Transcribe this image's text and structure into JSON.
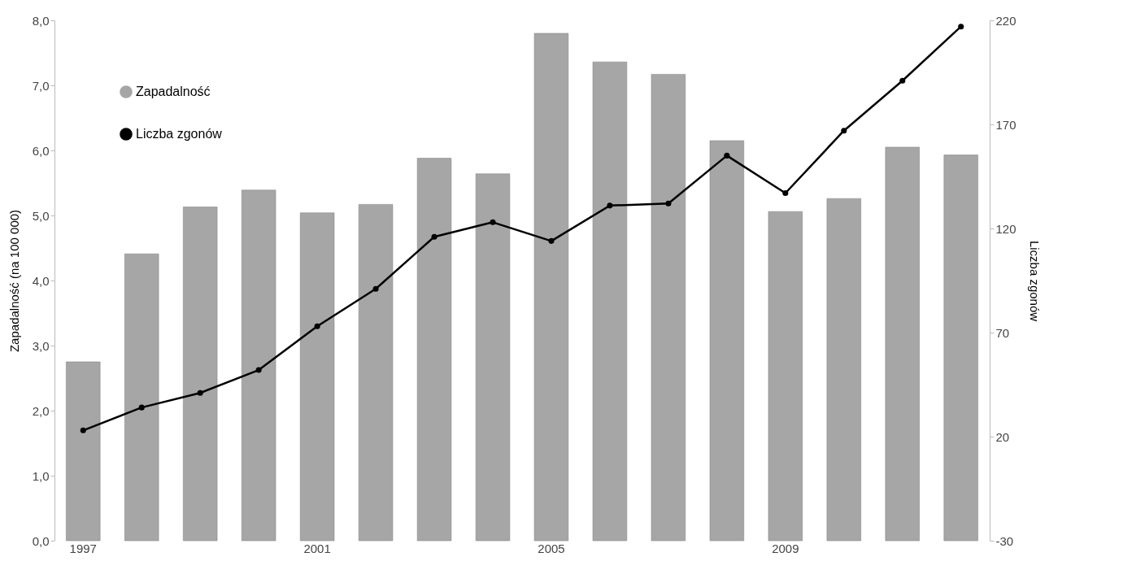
{
  "chart_data": {
    "type": "bar",
    "categories": [
      "1997",
      null,
      null,
      null,
      "2001",
      null,
      null,
      null,
      "2005",
      null,
      null,
      null,
      "2009",
      null,
      null,
      null
    ],
    "series": [
      {
        "name": "Zapadalność",
        "color": "#a6a6a6",
        "values": [
          2.75,
          4.41,
          5.13,
          5.39,
          5.04,
          5.17,
          5.88,
          5.64,
          7.8,
          7.36,
          7.17,
          6.15,
          5.06,
          5.26,
          6.05,
          5.93
        ]
      },
      {
        "name": "Liczba zgonów",
        "type": "line",
        "axis": "y2",
        "color": "#000000",
        "values": [
          23,
          34,
          41,
          52,
          73,
          91,
          116,
          123,
          114,
          131,
          132,
          155,
          137,
          167,
          191,
          217
        ]
      }
    ],
    "ylabel": "Zapadalność (na 100 000)",
    "y2label": "Liczba zgonów",
    "ylim": [
      0,
      8
    ],
    "yticks": [
      {
        "value": 0,
        "label": "0,0"
      },
      {
        "value": 1,
        "label": "1,0"
      },
      {
        "value": 2,
        "label": "2,0"
      },
      {
        "value": 3,
        "label": "3,0"
      },
      {
        "value": 4,
        "label": "4,0"
      },
      {
        "value": 5,
        "label": "5,0"
      },
      {
        "value": 6,
        "label": "6,0"
      },
      {
        "value": 7,
        "label": "7,0"
      },
      {
        "value": 8,
        "label": "8,0"
      }
    ],
    "y2lim": [
      -30,
      220
    ],
    "y2ticks": [
      -30,
      20,
      70,
      120,
      170,
      220
    ],
    "grid": false,
    "legend": "top left",
    "marker": "circle",
    "line_style": "solid"
  }
}
